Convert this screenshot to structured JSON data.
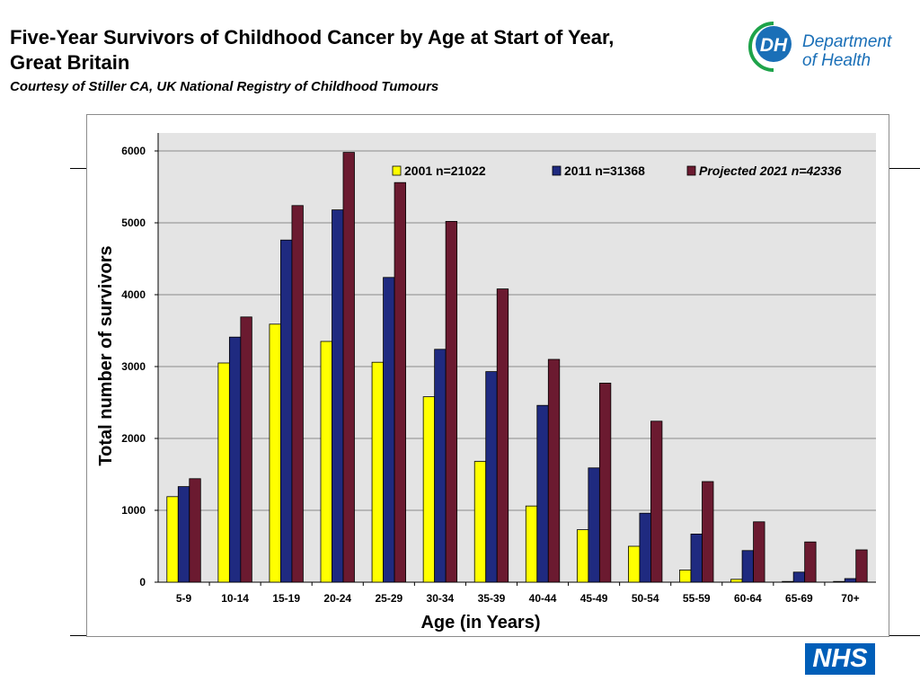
{
  "header": {
    "title_line1": "Five-Year Survivors of Childhood Cancer by Age at Start of Year,",
    "title_line2": "Great Britain",
    "subtitle": "Courtesy of Stiller CA, UK National Registry of Childhood Tumours"
  },
  "logos": {
    "dh_monogram": "DH",
    "dh_line1": "Department",
    "dh_line2": "of Health",
    "nhs": "NHS",
    "dh_colors": {
      "green": "#1ea34a",
      "blue": "#1a6fb7"
    },
    "nhs_color": "#005eb8"
  },
  "chart_data": {
    "type": "bar",
    "xlabel": "Age (in Years)",
    "ylabel": "Total number of survivors",
    "ylim": [
      0,
      6000
    ],
    "yticks": [
      0,
      1000,
      2000,
      3000,
      4000,
      5000,
      6000
    ],
    "grid": true,
    "legend_position": "top",
    "categories": [
      "5-9",
      "10-14",
      "15-19",
      "20-24",
      "25-29",
      "30-34",
      "35-39",
      "40-44",
      "45-49",
      "50-54",
      "55-59",
      "60-64",
      "65-69",
      "70+"
    ],
    "series": [
      {
        "name": "2001 n=21022",
        "color": "#ffff00",
        "italic": false,
        "values": [
          1190,
          3050,
          3590,
          3350,
          3060,
          2580,
          1680,
          1060,
          730,
          500,
          170,
          40,
          10,
          10
        ]
      },
      {
        "name": "2011 n=31368",
        "color": "#1f2a80",
        "italic": false,
        "values": [
          1330,
          3410,
          4760,
          5180,
          4240,
          3240,
          2930,
          2460,
          1590,
          960,
          670,
          440,
          140,
          50
        ]
      },
      {
        "name": "Projected 2021 n=42336",
        "color": "#6b1a30",
        "italic": true,
        "values": [
          1440,
          3690,
          5240,
          5980,
          5560,
          5020,
          4080,
          3100,
          2770,
          2240,
          1400,
          840,
          560,
          450
        ]
      }
    ]
  }
}
